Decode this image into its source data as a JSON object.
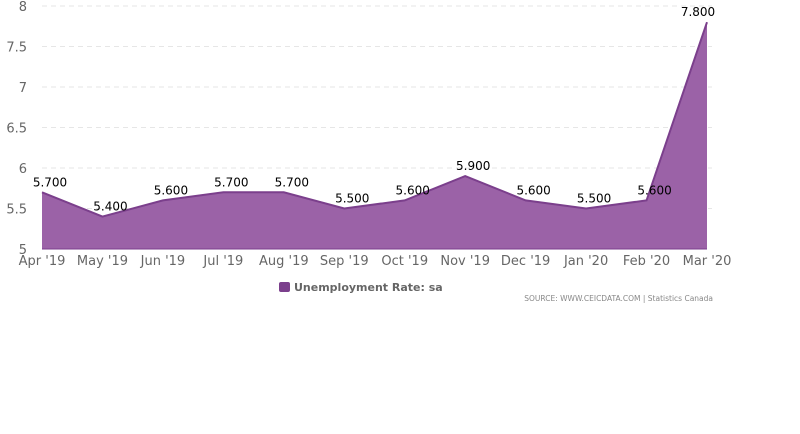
{
  "chart_data": {
    "type": "area",
    "categories": [
      "Apr '19",
      "May '19",
      "Jun '19",
      "Jul '19",
      "Aug '19",
      "Sep '19",
      "Oct '19",
      "Nov '19",
      "Dec '19",
      "Jan '20",
      "Feb '20",
      "Mar '20"
    ],
    "series": [
      {
        "name": "Unemployment Rate: sa",
        "values": [
          5.7,
          5.4,
          5.6,
          5.7,
          5.7,
          5.5,
          5.6,
          5.9,
          5.6,
          5.5,
          5.6,
          7.8
        ],
        "labels": [
          "5.700",
          "5.400",
          "5.600",
          "5.700",
          "5.700",
          "5.500",
          "5.600",
          "5.900",
          "5.600",
          "5.500",
          "5.600",
          "7.800"
        ]
      }
    ],
    "ylim": [
      5,
      8
    ],
    "yticks": [
      "5",
      "5.5",
      "6",
      "6.5",
      "7",
      "7.5",
      "8"
    ],
    "grid": true,
    "legend_position": "bottom-center",
    "colors": {
      "area": "#9b62a7",
      "line": "#7b3f8c",
      "legend": "#7b3f8c"
    }
  },
  "source": "SOURCE: WWW.CEICDATA.COM | Statistics Canada"
}
